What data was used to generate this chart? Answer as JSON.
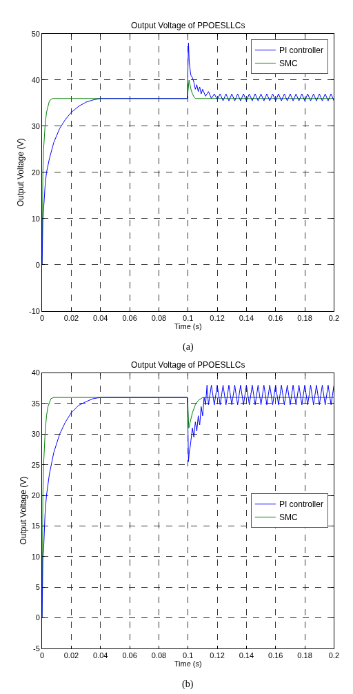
{
  "chart_data": [
    {
      "type": "line",
      "title": "Output Voltage of PPOESLLCs",
      "xlabel": "Time (s)",
      "ylabel": "Output Voltage (V)",
      "annotations": [
        "(a)"
      ],
      "xlim": [
        0,
        0.2
      ],
      "xticks": [
        0,
        0.02,
        0.04,
        0.06,
        0.08,
        0.1,
        0.12,
        0.14,
        0.16,
        0.18,
        0.2
      ],
      "ylim": [
        -10,
        50
      ],
      "yticks": [
        -10,
        0,
        10,
        20,
        30,
        40,
        50
      ],
      "grid": true,
      "legend": "top right",
      "series": [
        {
          "name": "PI controller",
          "color": "#0000ff",
          "x": [
            0,
            0.0005,
            0.001,
            0.002,
            0.003,
            0.005,
            0.008,
            0.012,
            0.016,
            0.02,
            0.025,
            0.03,
            0.035,
            0.04,
            0.0995,
            0.1003,
            0.1008,
            0.1015,
            0.102,
            0.103,
            0.104,
            0.105,
            0.106,
            0.107,
            0.108,
            0.109,
            0.11,
            0.112,
            0.114,
            0.116,
            0.118,
            0.12,
            0.122,
            0.124,
            0.126,
            0.128,
            0.13,
            0.132,
            0.134,
            0.136,
            0.138,
            0.14,
            0.142,
            0.144,
            0.146,
            0.148,
            0.15,
            0.152,
            0.154,
            0.156,
            0.158,
            0.16,
            0.162,
            0.164,
            0.166,
            0.168,
            0.17,
            0.172,
            0.174,
            0.176,
            0.178,
            0.18,
            0.182,
            0.184,
            0.186,
            0.188,
            0.19,
            0.192,
            0.194,
            0.196,
            0.198,
            0.2
          ],
          "values": [
            0,
            10,
            12,
            17,
            20,
            23,
            26.5,
            29.5,
            31.5,
            33,
            34.3,
            35.2,
            35.7,
            36,
            36,
            48,
            44,
            42,
            41,
            40.5,
            39.5,
            38,
            39,
            37.5,
            38.5,
            37,
            38,
            36.5,
            37.5,
            36,
            37,
            35.8,
            37,
            35.5,
            37,
            35.5,
            37,
            35.5,
            37,
            35.5,
            37,
            35.5,
            37,
            35.5,
            37,
            35.5,
            37,
            35.5,
            37,
            35.5,
            37,
            35.5,
            37,
            35.5,
            37,
            35.5,
            37,
            35.5,
            37,
            35.5,
            37,
            35.5,
            37,
            35.5,
            37,
            35.5,
            37,
            35.5,
            37,
            35.5,
            37,
            35.5
          ]
        },
        {
          "name": "SMC",
          "color": "#008000",
          "x": [
            0,
            0.0005,
            0.001,
            0.002,
            0.003,
            0.005,
            0.007,
            0.04,
            0.08,
            0.0995,
            0.1007,
            0.102,
            0.103,
            0.104,
            0.105,
            0.15,
            0.2
          ],
          "values": [
            0,
            20,
            25,
            30,
            33,
            35.5,
            36,
            36,
            36,
            36,
            40,
            38,
            37,
            36.4,
            36,
            36,
            36
          ]
        }
      ]
    },
    {
      "type": "line",
      "title": "Output Voltage of PPOESLLCs",
      "xlabel": "Time (s)",
      "ylabel": "Output Voltage (V)",
      "annotations": [
        "(b)"
      ],
      "xlim": [
        0,
        0.2
      ],
      "xticks": [
        0,
        0.02,
        0.04,
        0.06,
        0.08,
        0.1,
        0.12,
        0.14,
        0.16,
        0.18,
        0.2
      ],
      "ylim": [
        -5,
        40
      ],
      "yticks": [
        -5,
        0,
        5,
        10,
        15,
        20,
        25,
        30,
        35,
        40
      ],
      "grid": true,
      "legend": "right",
      "series": [
        {
          "name": "PI controller",
          "color": "#0000ff",
          "x": [
            0,
            0.0005,
            0.001,
            0.002,
            0.003,
            0.005,
            0.008,
            0.012,
            0.016,
            0.02,
            0.025,
            0.03,
            0.035,
            0.04,
            0.0995,
            0.1,
            0.1003,
            0.1008,
            0.1015,
            0.102,
            0.103,
            0.104,
            0.105,
            0.106,
            0.107,
            0.108,
            0.109,
            0.11,
            0.111,
            0.112,
            0.113,
            0.114,
            0.116,
            0.118,
            0.12,
            0.122,
            0.124,
            0.126,
            0.128,
            0.13,
            0.132,
            0.134,
            0.136,
            0.138,
            0.14,
            0.142,
            0.144,
            0.146,
            0.148,
            0.15,
            0.152,
            0.154,
            0.156,
            0.158,
            0.16,
            0.162,
            0.164,
            0.166,
            0.168,
            0.17,
            0.172,
            0.174,
            0.176,
            0.178,
            0.18,
            0.182,
            0.184,
            0.186,
            0.188,
            0.19,
            0.192,
            0.194,
            0.196,
            0.198,
            0.2
          ],
          "values": [
            0,
            10,
            11,
            17,
            20,
            23.5,
            27,
            30,
            32,
            33.5,
            34.7,
            35.3,
            35.8,
            36,
            36,
            30,
            25.5,
            27,
            28,
            29,
            31,
            29.5,
            32,
            30.5,
            33,
            31.5,
            34.5,
            33,
            36,
            34.8,
            38,
            34.8,
            38,
            34.8,
            38,
            34.8,
            38,
            34.8,
            38,
            34.8,
            38,
            34.8,
            38,
            34.8,
            38,
            34.8,
            38,
            34.8,
            38,
            34.8,
            38,
            34.8,
            38,
            34.8,
            38,
            34.8,
            38,
            34.8,
            38,
            34.8,
            38,
            34.8,
            38,
            34.8,
            38,
            34.8,
            38,
            34.8,
            38,
            34.8,
            38,
            34.8,
            38,
            34.8,
            38
          ]
        },
        {
          "name": "SMC",
          "color": "#008000",
          "x": [
            0,
            0.0005,
            0.001,
            0.002,
            0.003,
            0.004,
            0.006,
            0.008,
            0.04,
            0.08,
            0.0997,
            0.1005,
            0.102,
            0.103,
            0.105,
            0.107,
            0.11,
            0.15,
            0.2
          ],
          "values": [
            0,
            20,
            25,
            30,
            33,
            34.5,
            35.8,
            36,
            36,
            36,
            36,
            31,
            32.5,
            33.5,
            34.8,
            35.5,
            36,
            36,
            36
          ]
        }
      ]
    }
  ]
}
